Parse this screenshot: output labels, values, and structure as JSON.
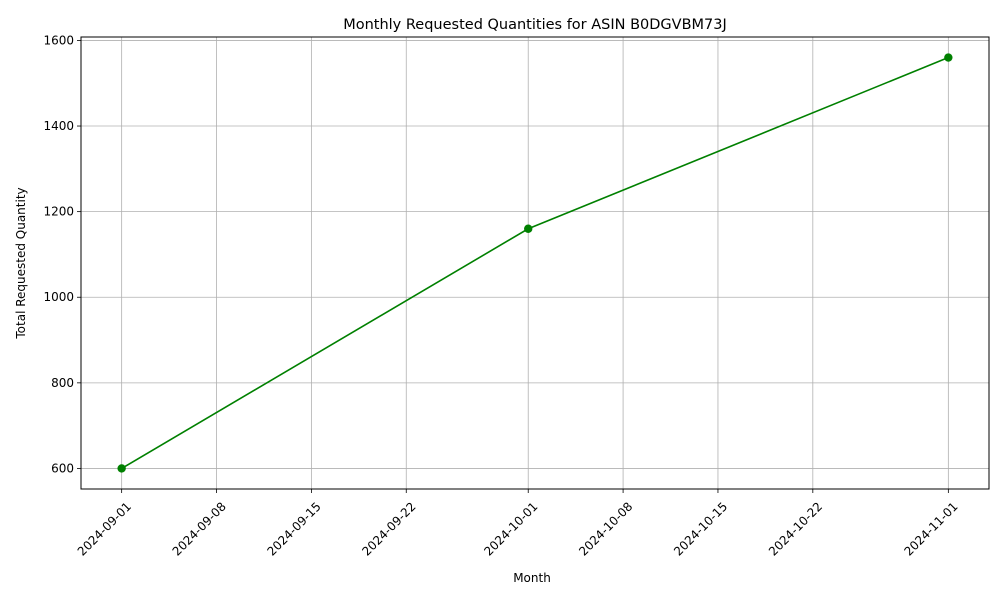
{
  "chart_data": {
    "type": "line",
    "title": "Monthly Requested Quantities for ASIN B0DGVBM73J",
    "xlabel": "Month",
    "ylabel": "Total Requested Quantity",
    "x_ticks": [
      "2024-09-01",
      "2024-09-08",
      "2024-09-15",
      "2024-09-22",
      "2024-10-01",
      "2024-10-08",
      "2024-10-15",
      "2024-10-22",
      "2024-11-01"
    ],
    "y_ticks": [
      600,
      800,
      1000,
      1200,
      1400,
      1600
    ],
    "xlim": [
      "2024-08-29",
      "2024-11-04"
    ],
    "ylim": [
      552,
      1608
    ],
    "grid": true,
    "series": [
      {
        "color": "#008000",
        "marker": "circle",
        "points": [
          {
            "x": "2024-09-01",
            "y": 600
          },
          {
            "x": "2024-10-01",
            "y": 1160
          },
          {
            "x": "2024-11-01",
            "y": 1560
          }
        ]
      }
    ]
  }
}
